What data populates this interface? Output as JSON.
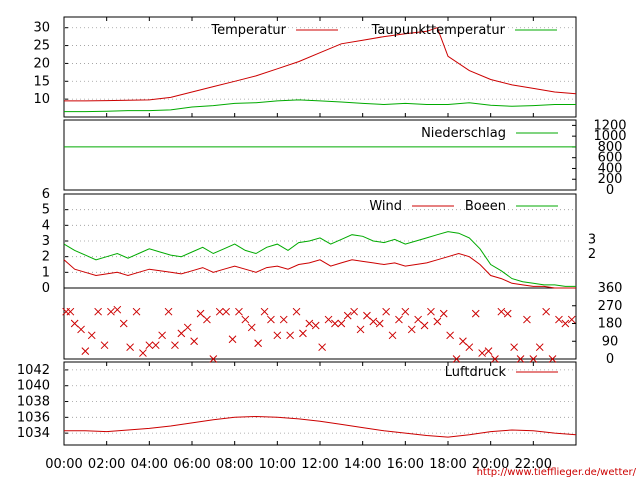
{
  "chart_data": [
    {
      "type": "line",
      "panel": "temperature",
      "ylim": [
        5,
        33
      ],
      "yticks": [
        10,
        15,
        20,
        25,
        30
      ],
      "grid": true,
      "legend_placement": "top",
      "series": [
        {
          "name": "Temperatur",
          "color": "#cc0000",
          "x": [
            0,
            1,
            2,
            3,
            4,
            5,
            6,
            7,
            8,
            9,
            10,
            11,
            12,
            13,
            14,
            15,
            16,
            17,
            17.5,
            18,
            19,
            20,
            21,
            22,
            23,
            24
          ],
          "values": [
            9.5,
            9.5,
            9.6,
            9.7,
            9.8,
            10.5,
            12,
            13.5,
            15,
            16.5,
            18.5,
            20.5,
            23,
            25.5,
            26.5,
            27.5,
            28.3,
            29,
            30,
            22,
            18,
            15.5,
            14,
            13,
            12,
            11.5
          ]
        },
        {
          "name": "Taupunkttemperatur",
          "color": "#00aa00",
          "x": [
            0,
            1,
            2,
            3,
            4,
            5,
            6,
            7,
            8,
            9,
            10,
            11,
            12,
            13,
            14,
            15,
            16,
            17,
            18,
            19,
            20,
            21,
            22,
            23,
            24
          ],
          "values": [
            6.5,
            6.5,
            6.6,
            6.8,
            6.8,
            7.0,
            7.8,
            8.2,
            8.8,
            9.0,
            9.5,
            9.8,
            9.5,
            9.2,
            8.8,
            8.5,
            8.8,
            8.5,
            8.5,
            9.0,
            8.3,
            8.0,
            8.2,
            8.5,
            8.5
          ]
        }
      ]
    },
    {
      "type": "line",
      "panel": "precipitation",
      "ylim": [
        0,
        1300
      ],
      "yticks": [
        0,
        200,
        400,
        600,
        800,
        1000,
        1200
      ],
      "series": [
        {
          "name": "Niederschlag",
          "color": "#00aa00",
          "x": [
            0,
            24
          ],
          "values": [
            800,
            800
          ]
        }
      ]
    },
    {
      "type": "line",
      "panel": "wind",
      "ylim": [
        0,
        6
      ],
      "yticks": [
        0,
        1,
        2,
        3,
        4,
        5,
        6
      ],
      "right_ticks": [
        "2",
        "3"
      ],
      "grid": true,
      "series": [
        {
          "name": "Wind",
          "color": "#cc0000",
          "x": [
            0,
            0.5,
            1,
            1.5,
            2,
            2.5,
            3,
            3.5,
            4,
            4.5,
            5,
            5.5,
            6,
            6.5,
            7,
            7.5,
            8,
            8.5,
            9,
            9.5,
            10,
            10.5,
            11,
            11.5,
            12,
            12.5,
            13,
            13.5,
            14,
            14.5,
            15,
            15.5,
            16,
            16.5,
            17,
            17.5,
            18,
            18.5,
            19,
            19.5,
            20,
            20.5,
            21,
            21.5,
            22,
            22.5,
            23,
            23.5,
            24
          ],
          "values": [
            1.8,
            1.2,
            1.0,
            0.8,
            0.9,
            1.0,
            0.8,
            1.0,
            1.2,
            1.1,
            1.0,
            0.9,
            1.1,
            1.3,
            1.0,
            1.2,
            1.4,
            1.2,
            1.0,
            1.3,
            1.4,
            1.2,
            1.5,
            1.6,
            1.8,
            1.4,
            1.6,
            1.8,
            1.7,
            1.6,
            1.5,
            1.6,
            1.4,
            1.5,
            1.6,
            1.8,
            2.0,
            2.2,
            2.0,
            1.5,
            0.8,
            0.6,
            0.3,
            0.2,
            0.1,
            0.1,
            0.0,
            0.0,
            0.0
          ]
        },
        {
          "name": "Boeen",
          "color": "#00aa00",
          "x": [
            0,
            0.5,
            1,
            1.5,
            2,
            2.5,
            3,
            3.5,
            4,
            4.5,
            5,
            5.5,
            6,
            6.5,
            7,
            7.5,
            8,
            8.5,
            9,
            9.5,
            10,
            10.5,
            11,
            11.5,
            12,
            12.5,
            13,
            13.5,
            14,
            14.5,
            15,
            15.5,
            16,
            16.5,
            17,
            17.5,
            18,
            18.5,
            19,
            19.5,
            20,
            20.5,
            21,
            21.5,
            22,
            22.5,
            23,
            23.5,
            24
          ],
          "values": [
            2.8,
            2.4,
            2.1,
            1.8,
            2.0,
            2.2,
            1.9,
            2.2,
            2.5,
            2.3,
            2.1,
            2.0,
            2.3,
            2.6,
            2.2,
            2.5,
            2.8,
            2.4,
            2.2,
            2.6,
            2.8,
            2.4,
            2.9,
            3.0,
            3.2,
            2.8,
            3.1,
            3.4,
            3.3,
            3.0,
            2.9,
            3.1,
            2.8,
            3.0,
            3.2,
            3.4,
            3.6,
            3.5,
            3.2,
            2.5,
            1.5,
            1.1,
            0.6,
            0.4,
            0.3,
            0.2,
            0.2,
            0.1,
            0.1
          ]
        }
      ]
    },
    {
      "type": "scatter",
      "panel": "wind_direction",
      "ylim": [
        0,
        360
      ],
      "yticks": [
        0,
        90,
        180,
        270,
        360
      ],
      "marker": "x",
      "color": "#cc0000",
      "series": [
        {
          "x": [
            0.1,
            0.3,
            0.5,
            0.8,
            1.0,
            1.3,
            1.6,
            1.9,
            2.2,
            2.5,
            2.8,
            3.1,
            3.4,
            3.7,
            4.0,
            4.3,
            4.6,
            4.9,
            5.2,
            5.5,
            5.8,
            6.1,
            6.4,
            6.7,
            7.0,
            7.3,
            7.6,
            7.9,
            8.2,
            8.5,
            8.8,
            9.1,
            9.4,
            9.7,
            10.0,
            10.3,
            10.6,
            10.9,
            11.2,
            11.5,
            11.8,
            12.1,
            12.4,
            12.7,
            13.0,
            13.3,
            13.6,
            13.9,
            14.2,
            14.5,
            14.8,
            15.1,
            15.4,
            15.7,
            16.0,
            16.3,
            16.6,
            16.9,
            17.2,
            17.5,
            17.8,
            18.1,
            18.4,
            18.7,
            19.0,
            19.3,
            19.6,
            19.9,
            20.2,
            20.5,
            20.8,
            21.1,
            21.4,
            21.7,
            22.0,
            22.3,
            22.6,
            22.9,
            23.2,
            23.5,
            23.8
          ],
          "values": [
            240,
            240,
            180,
            150,
            40,
            120,
            240,
            70,
            240,
            250,
            180,
            60,
            240,
            30,
            70,
            70,
            120,
            240,
            70,
            130,
            160,
            90,
            230,
            200,
            0,
            240,
            240,
            100,
            240,
            200,
            160,
            80,
            240,
            200,
            120,
            200,
            120,
            240,
            130,
            180,
            170,
            60,
            200,
            180,
            180,
            220,
            240,
            150,
            220,
            190,
            180,
            240,
            120,
            200,
            240,
            150,
            200,
            170,
            240,
            190,
            230,
            120,
            0,
            90,
            60,
            230,
            30,
            40,
            0,
            240,
            230,
            60,
            0,
            200,
            0,
            60,
            240,
            0,
            200,
            180,
            200
          ]
        }
      ]
    },
    {
      "type": "line",
      "panel": "pressure",
      "ylim": [
        1032.5,
        1043
      ],
      "yticks": [
        1034,
        1036,
        1038,
        1040,
        1042
      ],
      "grid": true,
      "series": [
        {
          "name": "Luftdruck",
          "color": "#cc0000",
          "x": [
            0,
            1,
            2,
            3,
            4,
            5,
            6,
            7,
            8,
            9,
            10,
            11,
            12,
            13,
            14,
            15,
            16,
            17,
            18,
            19,
            20,
            21,
            22,
            23,
            24
          ],
          "values": [
            1034.3,
            1034.3,
            1034.2,
            1034.4,
            1034.6,
            1034.9,
            1035.3,
            1035.7,
            1036.0,
            1036.1,
            1036.0,
            1035.8,
            1035.5,
            1035.1,
            1034.7,
            1034.3,
            1034.0,
            1033.7,
            1033.5,
            1033.8,
            1034.2,
            1034.4,
            1034.3,
            1034.0,
            1033.8
          ]
        }
      ]
    }
  ],
  "x_ticks": [
    "00:00",
    "02:00",
    "04:00",
    "06:00",
    "08:00",
    "10:00",
    "12:00",
    "14:00",
    "16:00",
    "18:00",
    "20:00",
    "22:00"
  ],
  "credit_url": "http://www.tiefflieger.de/wetter/"
}
